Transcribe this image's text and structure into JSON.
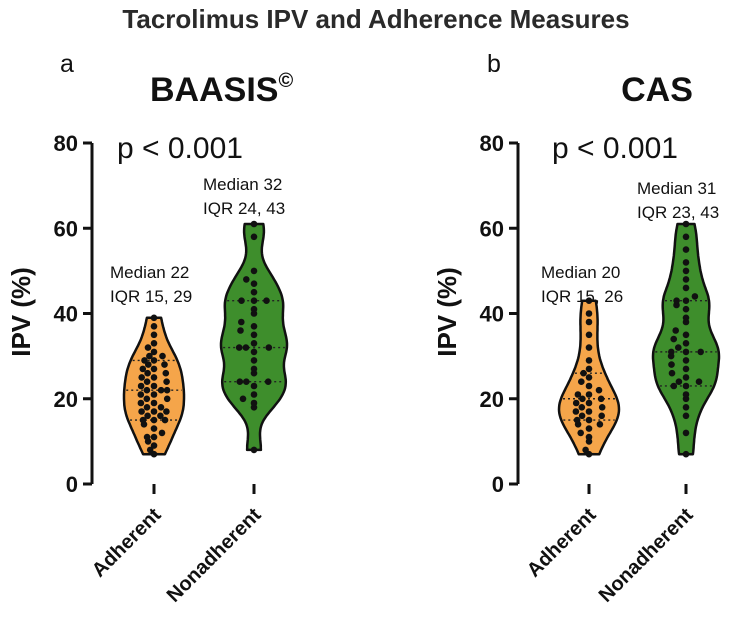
{
  "figure": {
    "title": "Tacrolimus IPV and Adherence Measures"
  },
  "chart_data": [
    {
      "type": "violin",
      "panel_label": "a",
      "title": "BAASIS",
      "title_superscript": "©",
      "p_value": "p < 0.001",
      "ylabel": "IPV (%)",
      "ylim": [
        0,
        80
      ],
      "yticks": [
        "0",
        "20",
        "40",
        "60",
        "80"
      ],
      "categories": [
        "Adherent",
        "Nonadherent"
      ],
      "series": [
        {
          "name": "Adherent",
          "color": "#F5A54A",
          "min": 7,
          "max": 39,
          "q1": 15,
          "median": 22,
          "q3": 29,
          "annotation": [
            "Median 22",
            "IQR 15, 29"
          ],
          "points": [
            7,
            8,
            9,
            10,
            11,
            11,
            12,
            13,
            14,
            15,
            15,
            15,
            16,
            16,
            17,
            17,
            17,
            18,
            18,
            19,
            19,
            20,
            20,
            21,
            21,
            22,
            22,
            22,
            23,
            23,
            24,
            24,
            25,
            25,
            26,
            26,
            27,
            27,
            28,
            28,
            29,
            29,
            30,
            30,
            31,
            32,
            33,
            35,
            37,
            39
          ]
        },
        {
          "name": "Nonadherent",
          "color": "#3E8E2C",
          "min": 8,
          "max": 61,
          "q1": 24,
          "median": 32,
          "q3": 43,
          "annotation": [
            "Median 32",
            "IQR 24, 43"
          ],
          "points": [
            8,
            18,
            19,
            20,
            21,
            23,
            24,
            24,
            24,
            26,
            27,
            29,
            31,
            32,
            32,
            32,
            33,
            35,
            36,
            37,
            38,
            40,
            41,
            43,
            43,
            43,
            45,
            47,
            48,
            50,
            58,
            61
          ]
        }
      ]
    },
    {
      "type": "violin",
      "panel_label": "b",
      "title": "CAS",
      "title_superscript": "",
      "p_value": "p < 0.001",
      "ylabel": "IPV (%)",
      "ylim": [
        0,
        80
      ],
      "yticks": [
        "0",
        "20",
        "40",
        "60",
        "80"
      ],
      "categories": [
        "Adherent",
        "Nonadherent"
      ],
      "series": [
        {
          "name": "Adherent",
          "color": "#F5A54A",
          "min": 7,
          "max": 43,
          "q1": 15,
          "median": 20,
          "q3": 26,
          "annotation": [
            "Median 20",
            "IQR 15, 26"
          ],
          "points": [
            7,
            8,
            10,
            11,
            12,
            13,
            14,
            14,
            15,
            15,
            16,
            16,
            17,
            17,
            18,
            18,
            19,
            19,
            20,
            20,
            21,
            21,
            22,
            23,
            24,
            25,
            26,
            27,
            29,
            32,
            35,
            38,
            40,
            43
          ]
        },
        {
          "name": "Nonadherent",
          "color": "#3E8E2C",
          "min": 7,
          "max": 61,
          "q1": 23,
          "median": 31,
          "q3": 43,
          "annotation": [
            "Median 31",
            "IQR 23, 43"
          ],
          "points": [
            7,
            12,
            16,
            18,
            20,
            21,
            23,
            23,
            24,
            24,
            25,
            26,
            27,
            28,
            29,
            30,
            31,
            31,
            31,
            32,
            33,
            34,
            35,
            36,
            38,
            39,
            41,
            42,
            43,
            43,
            44,
            46,
            48,
            50,
            52,
            55,
            58,
            61
          ]
        }
      ]
    }
  ]
}
